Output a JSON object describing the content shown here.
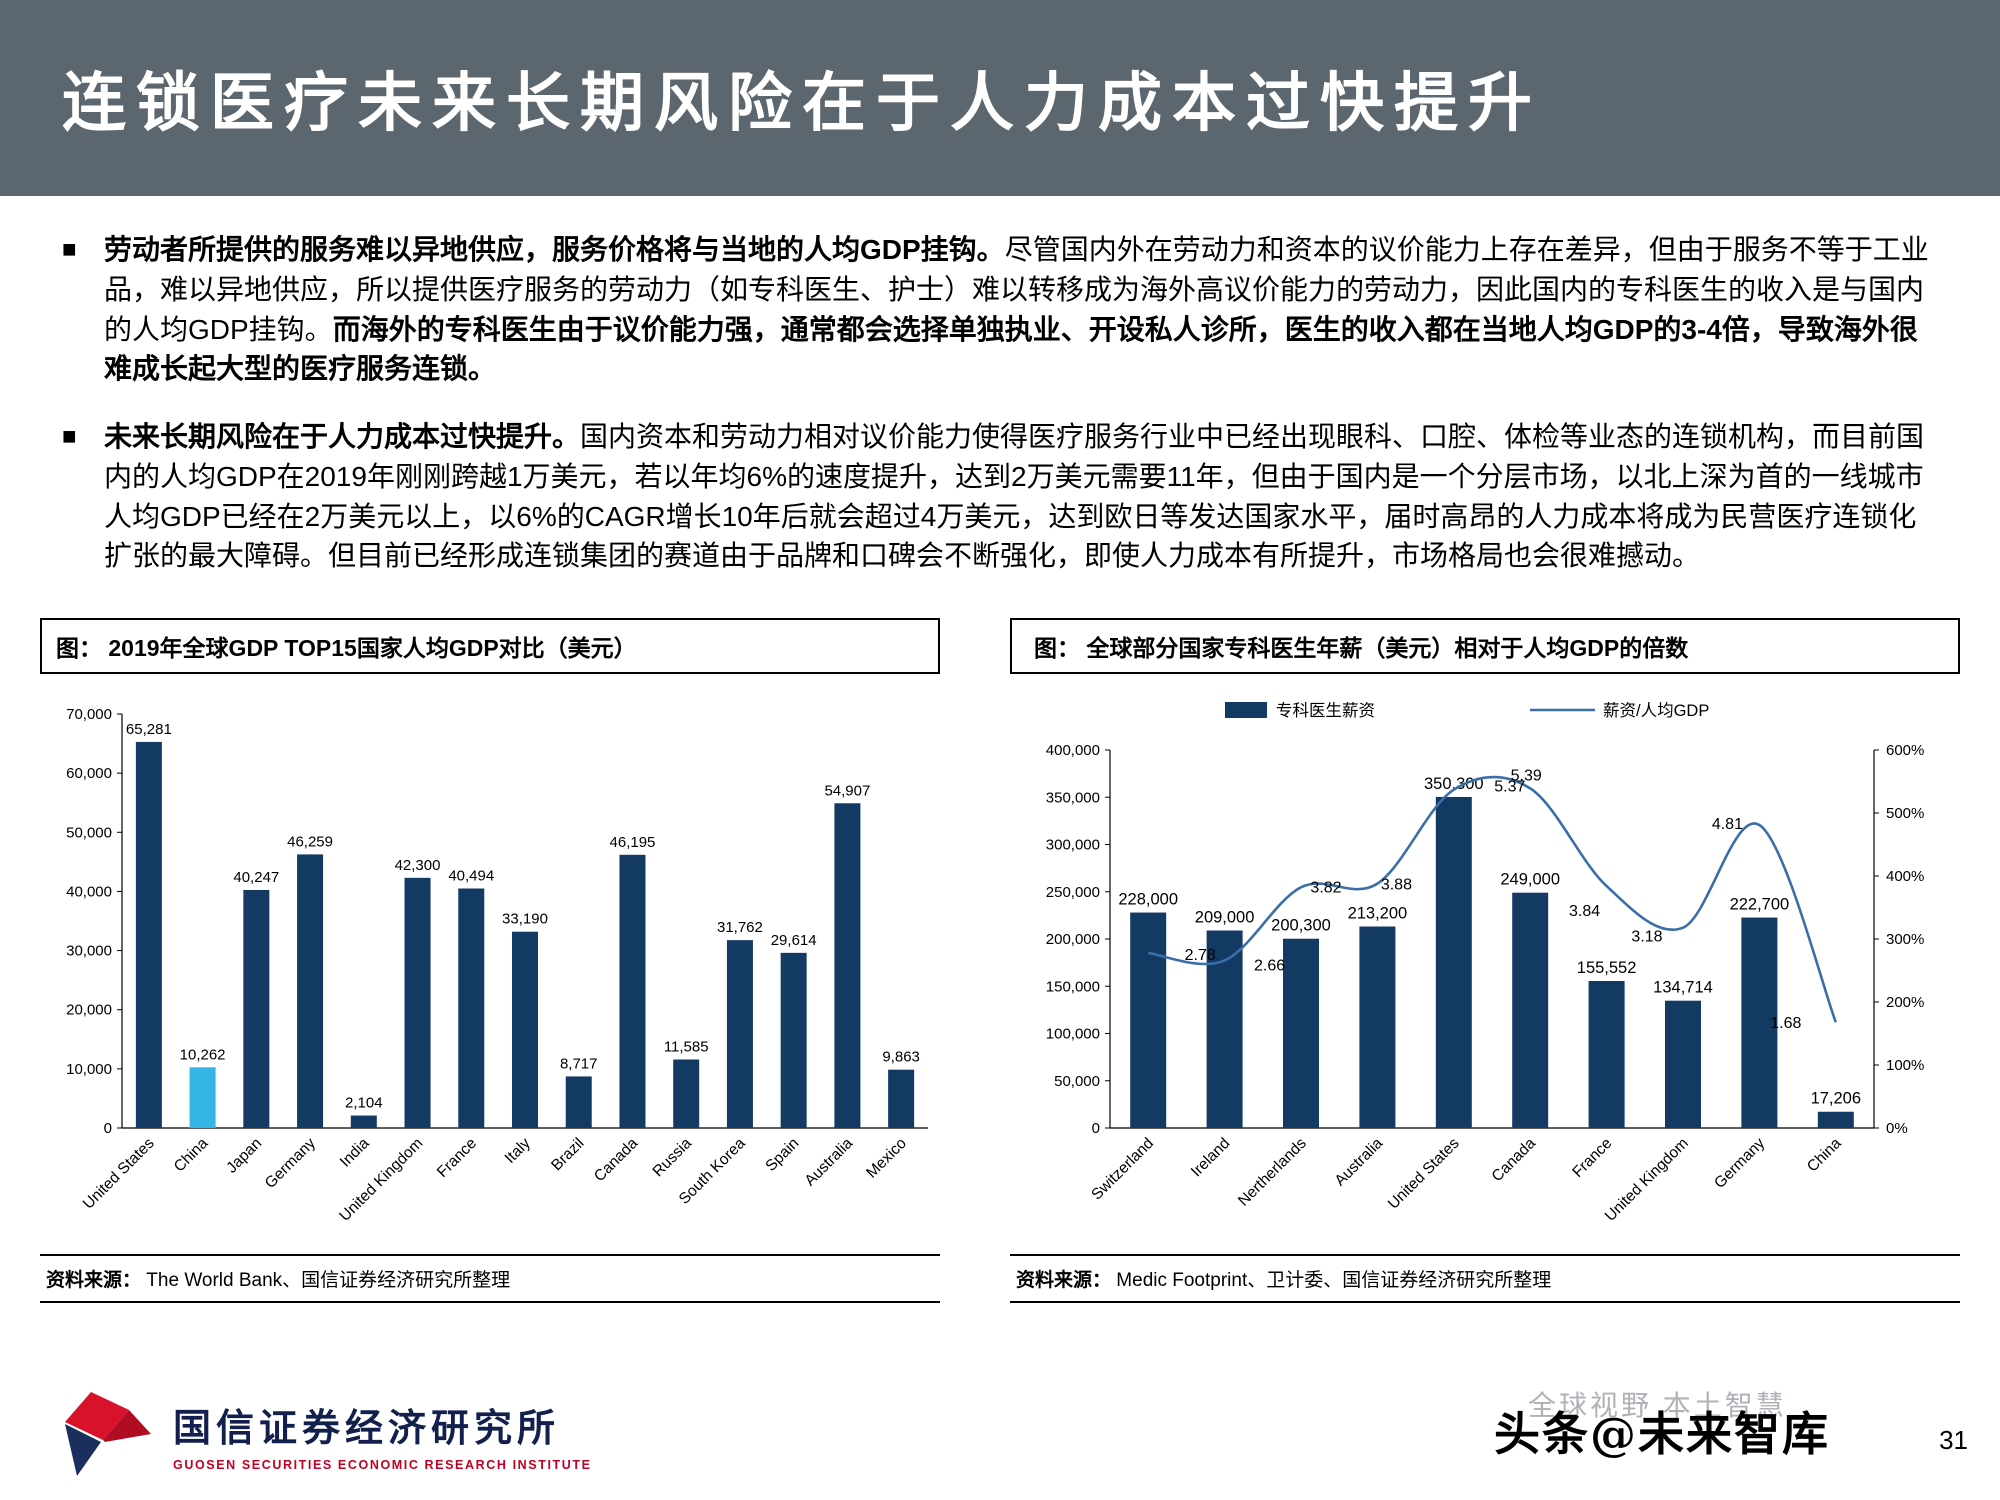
{
  "slide": {
    "title": "连锁医疗未来长期风险在于人力成本过快提升",
    "page_number": "31",
    "watermark": "头条@未来智库",
    "watermark_behind": "全球视野 本土智慧",
    "footer": {
      "org_cn": "国信证券经济研究所",
      "org_en": "GUOSEN SECURITIES ECONOMIC RESEARCH INSTITUTE"
    }
  },
  "bullets": [
    {
      "marker": "■",
      "segments": [
        {
          "text": "劳动者所提供的服务难以异地供应，服务价格将与当地的人均GDP挂钩。",
          "bold": true
        },
        {
          "text": "尽管国内外在劳动力和资本的议价能力上存在差异，但由于服务不等于工业品，难以异地供应，所以提供医疗服务的劳动力（如专科医生、护士）难以转移成为海外高议价能力的劳动力，因此国内的专科医生的收入是与国内的人均GDP挂钩。",
          "bold": false
        },
        {
          "text": "而海外的专科医生由于议价能力强，通常都会选择单独执业、开设私人诊所，医生的收入都在当地人均GDP的3-4倍，导致海外很难成长起大型的医疗服务连锁。",
          "bold": true
        }
      ]
    },
    {
      "marker": "■",
      "segments": [
        {
          "text": "未来长期风险在于人力成本过快提升。",
          "bold": true
        },
        {
          "text": "国内资本和劳动力相对议价能力使得医疗服务行业中已经出现眼科、口腔、体检等业态的连锁机构，而目前国内的人均GDP在2019年刚刚跨越1万美元，若以年均6%的速度提升，达到2万美元需要11年，但由于国内是一个分层市场，以北上深为首的一线城市人均GDP已经在2万美元以上，以6%的CAGR增长10年后就会超过4万美元，达到欧日等发达国家水平，届时高昂的人力成本将成为民营医疗连锁化扩张的最大障碍。但目前已经形成连锁集团的赛道由于品牌和口碑会不断强化，即使人力成本有所提升，市场格局也会很难撼动。",
          "bold": false
        }
      ]
    }
  ],
  "chart_data": [
    {
      "type": "bar",
      "title": "图： 2019年全球GDP TOP15国家人均GDP对比（美元）",
      "categories": [
        "United States",
        "China",
        "Japan",
        "Germany",
        "India",
        "United Kingdom",
        "France",
        "Italy",
        "Brazil",
        "Canada",
        "Russia",
        "South Korea",
        "Spain",
        "Australia",
        "Mexico"
      ],
      "values": [
        65281,
        10262,
        40247,
        46259,
        2104,
        42300,
        40494,
        33190,
        8717,
        46195,
        11585,
        31762,
        29614,
        54907,
        9863
      ],
      "highlight_category": "China",
      "ylim": [
        0,
        70000
      ],
      "ytick_step": 10000,
      "bar_color": "#133a63",
      "highlight_color": "#35b5e5",
      "grid": false,
      "legend_position": "none",
      "source_label": "资料来源：",
      "source": " The World Bank、国信证券经济研究所整理"
    },
    {
      "type": "bar+line",
      "title": "图： 全球部分国家专科医生年薪（美元）相对于人均GDP的倍数",
      "categories": [
        "Switzerland",
        "Ireland",
        "Nertherlands",
        "Australia",
        "United States",
        "Canada",
        "France",
        "United Kingdom",
        "Germany",
        "China"
      ],
      "series": [
        {
          "name": "专科医生薪资",
          "type": "bar",
          "axis": "left",
          "values": [
            228000,
            209000,
            200300,
            213200,
            350300,
            249000,
            155552,
            134714,
            222700,
            17206
          ]
        },
        {
          "name": "薪资/人均GDP",
          "type": "line",
          "axis": "right",
          "values": [
            2.78,
            2.66,
            3.82,
            3.88,
            5.37,
            5.39,
            3.84,
            3.18,
            4.81,
            1.68
          ]
        }
      ],
      "ylim_left": [
        0,
        400000
      ],
      "ytick_left_step": 50000,
      "ylim_right_percent": [
        0,
        600
      ],
      "ytick_right_step": 100,
      "bar_color": "#133a63",
      "line_color": "#3a6ea8",
      "grid": false,
      "legend_position": "top",
      "source_label": "资料来源：",
      "source": " Medic Footprint、卫计委、国信证券经济研究所整理"
    }
  ]
}
